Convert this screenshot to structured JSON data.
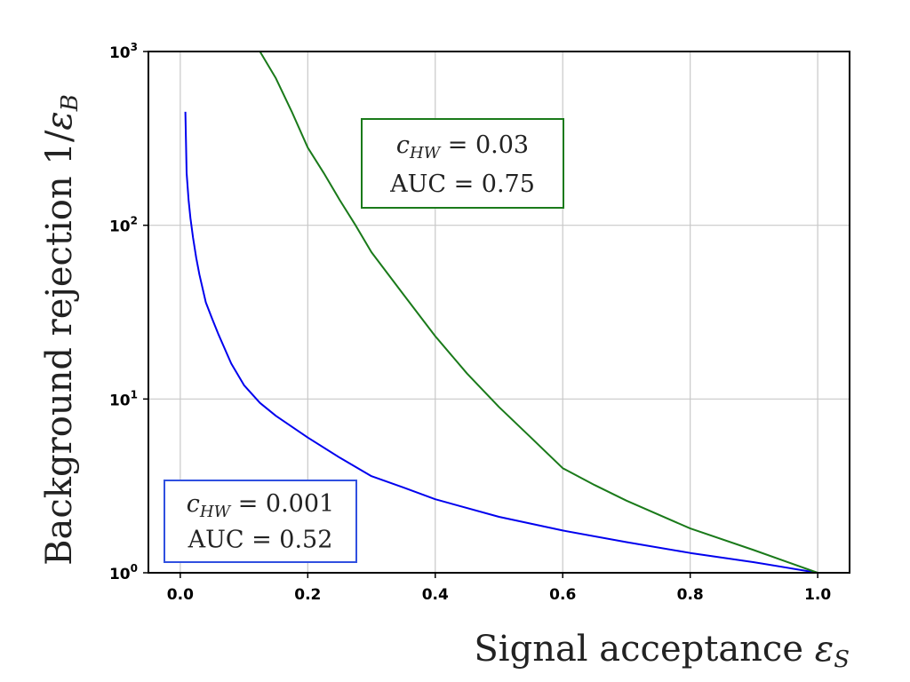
{
  "chart_data": {
    "type": "line",
    "xlabel": {
      "text": "Signal acceptance ",
      "symbol": "ε",
      "sub": "S"
    },
    "ylabel": {
      "text": "Background rejection 1/",
      "symbol": "ε",
      "sub": "B"
    },
    "xlim": [
      -0.05,
      1.05
    ],
    "ylim": [
      1,
      1000
    ],
    "yscale": "log",
    "grid": true,
    "x_ticks": [
      {
        "value": 0.0,
        "label": "0.0"
      },
      {
        "value": 0.2,
        "label": "0.2"
      },
      {
        "value": 0.4,
        "label": "0.4"
      },
      {
        "value": 0.6,
        "label": "0.6"
      },
      {
        "value": 0.8,
        "label": "0.8"
      },
      {
        "value": 1.0,
        "label": "1.0"
      }
    ],
    "y_ticks": [
      {
        "value": 1,
        "base": "10",
        "exp": "0"
      },
      {
        "value": 10,
        "base": "10",
        "exp": "1"
      },
      {
        "value": 100,
        "base": "10",
        "exp": "2"
      },
      {
        "value": 1000,
        "base": "10",
        "exp": "3"
      }
    ],
    "series": [
      {
        "color": "#0000ee",
        "annotation": {
          "c_var": "c",
          "c_sub": "HW",
          "c_value": " = 0.001",
          "auc": "AUC = 0.52",
          "placement": "bottom-left"
        },
        "x": [
          0.008,
          0.01,
          0.013,
          0.016,
          0.02,
          0.025,
          0.03,
          0.04,
          0.05,
          0.06,
          0.08,
          0.1,
          0.125,
          0.15,
          0.2,
          0.25,
          0.3,
          0.35,
          0.4,
          0.5,
          0.6,
          0.7,
          0.8,
          0.9,
          1.0
        ],
        "y": [
          450,
          200,
          140,
          110,
          85,
          65,
          52,
          36,
          29,
          23.5,
          16,
          12,
          9.5,
          8,
          6,
          4.6,
          3.6,
          3.1,
          2.65,
          2.1,
          1.75,
          1.5,
          1.3,
          1.15,
          1.0
        ]
      },
      {
        "color": "#1a7a1a",
        "annotation": {
          "c_var": "c",
          "c_sub": "HW",
          "c_value": " = 0.03",
          "auc": "AUC = 0.75",
          "placement": "top-center"
        },
        "x": [
          0.125,
          0.15,
          0.175,
          0.2,
          0.225,
          0.25,
          0.275,
          0.3,
          0.35,
          0.4,
          0.45,
          0.5,
          0.55,
          0.6,
          0.65,
          0.7,
          0.8,
          0.9,
          1.0
        ],
        "y": [
          1000,
          700,
          450,
          280,
          200,
          140,
          100,
          70,
          40,
          23,
          14,
          9,
          6,
          4,
          3.2,
          2.6,
          1.8,
          1.35,
          1.0
        ]
      }
    ]
  }
}
